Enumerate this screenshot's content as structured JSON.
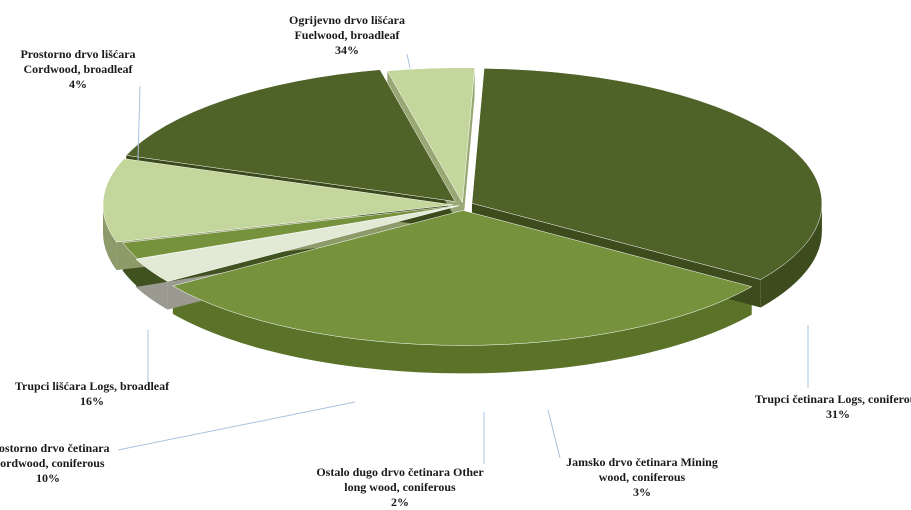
{
  "chart_data": {
    "type": "pie",
    "style": "3d-exploded",
    "series": [
      {
        "categories": [
          "Ogrijevno drvo lišćara Fuelwood, broadleaf",
          "Trupci četinara Logs, coniferous",
          "Jamsko drvo četinara Mining wood, coniferous",
          "Ostalo dugo drvo četinara Other long wood, coniferous",
          "Prostorno drvo četinara Cordwood, coniferous",
          "Trupci lišćara Logs, broadleaf",
          "Prostorno drvo lišćara Cordwood, broadleaf"
        ],
        "values": [
          34,
          31,
          3,
          2,
          10,
          16,
          4
        ],
        "colors": [
          "#4f6228",
          "#76923c",
          "#e2e9d5",
          "#76923c",
          "#c3d69b",
          "#4f6228",
          "#c3d69b"
        ],
        "side_colors": [
          "#3c4c1d",
          "#5b7329",
          "#9a9a90",
          "#3f5220",
          "#8d9a6a",
          "#3a4a1b",
          "#98a874"
        ]
      }
    ],
    "labels": [
      {
        "lines": [
          "Ogrijevno drvo lišćara",
          "Fuelwood, broadleaf",
          "34%"
        ]
      },
      {
        "lines": [
          "Trupci  četinara Logs, coniferous",
          "31%"
        ]
      },
      {
        "lines": [
          "Jamsko drvo četinara Mining",
          "wood, coniferous",
          "3%"
        ]
      },
      {
        "lines": [
          "Ostalo dugo drvo četinara Other",
          "long wood, coniferous",
          "2%"
        ]
      },
      {
        "lines": [
          "Prostorno drvo četinara",
          "Cordwood, coniferous",
          "10%"
        ]
      },
      {
        "lines": [
          "Trupci  lišćara Logs, broadleaf",
          "16%"
        ]
      },
      {
        "lines": [
          "Prostorno drvo lišćara",
          "Cordwood, broadleaf",
          "4%"
        ]
      }
    ],
    "legend": "none"
  }
}
